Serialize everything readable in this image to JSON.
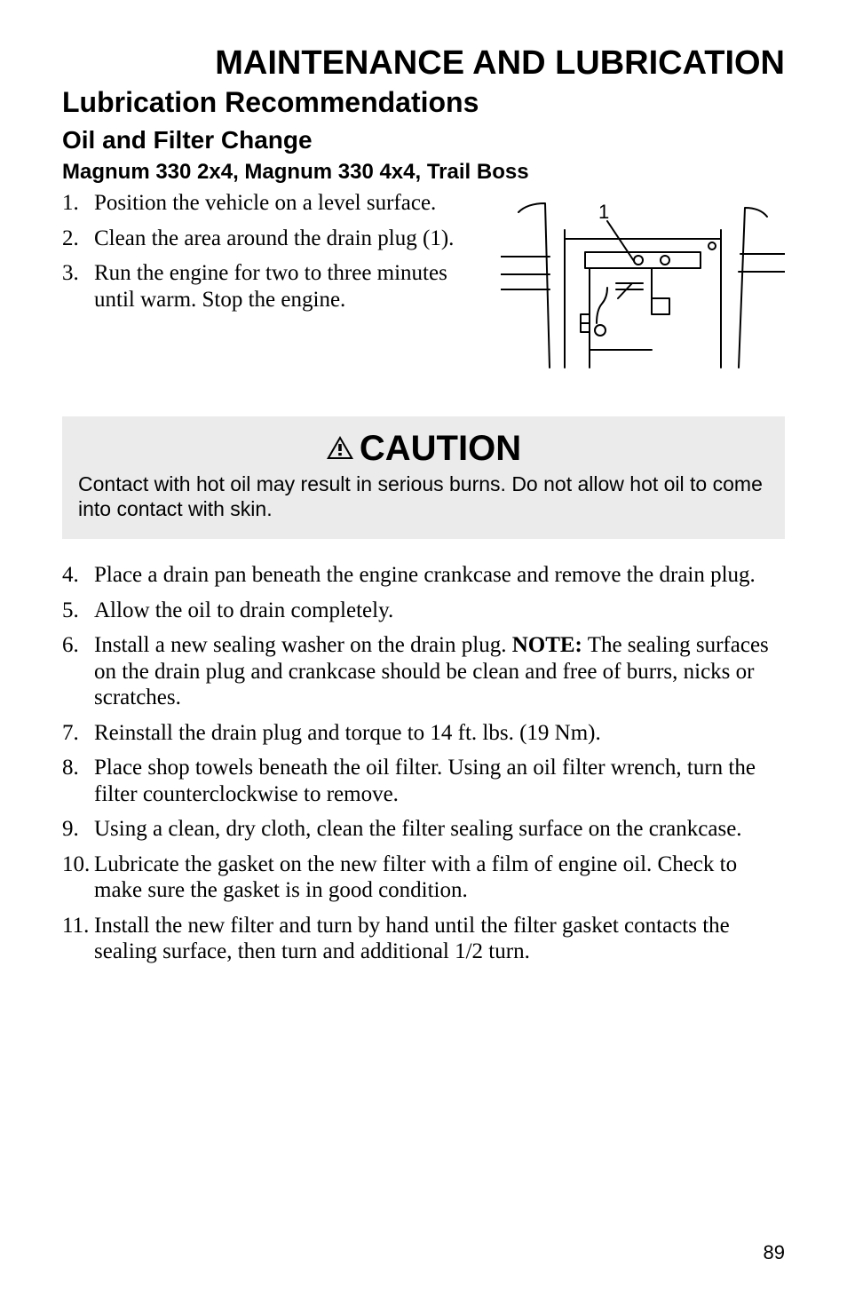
{
  "chapter_title": "MAINTENANCE AND LUBRICATION",
  "section_title": "Lubrication Recommendations",
  "sub_title": "Oil and Filter Change",
  "model_title": "Magnum 330 2x4, Magnum 330 4x4, Trail Boss",
  "steps_top": [
    {
      "n": "1.",
      "t": "Position the vehicle on a level surface."
    },
    {
      "n": "2.",
      "t": "Clean the area around the drain plug (1)."
    },
    {
      "n": "3.",
      "t": "Run the engine for two to three minutes until warm.  Stop the engine."
    }
  ],
  "figure": {
    "callout": "1",
    "stroke": "#000000",
    "stroke_width": 2,
    "callout_font_family": "Arial, Helvetica, sans-serif",
    "callout_fontsize": 22
  },
  "caution": {
    "heading": "CAUTION",
    "text": "Contact with hot oil may result in serious burns.  Do not allow hot oil to come into contact with skin.",
    "background": "#ebebeb",
    "heading_fontsize": 40,
    "text_fontsize": 23
  },
  "note_label": "NOTE:",
  "steps_bottom": [
    {
      "n": "4.",
      "t": "Place a drain pan beneath the engine crankcase and remove the drain plug."
    },
    {
      "n": "5.",
      "t": "Allow the oil to drain completely."
    },
    {
      "n": "6.",
      "pre": "Install a new sealing washer on the drain plug.  ",
      "note": true,
      "post": "  The sealing surfaces on the drain plug and crankcase should be clean and free of burrs, nicks or scratches."
    },
    {
      "n": "7.",
      "t": "Reinstall the drain plug and torque to 14 ft. lbs. (19 Nm)."
    },
    {
      "n": "8.",
      "t": "Place shop towels beneath the oil filter.  Using an oil filter wrench, turn the filter counterclockwise to remove."
    },
    {
      "n": "9.",
      "t": "Using a clean, dry cloth, clean the filter sealing surface on the crankcase."
    },
    {
      "n": "10.",
      "t": "Lubricate the gasket on the new filter with a film of engine oil.  Check to make sure the gasket is in good condition."
    },
    {
      "n": "11.",
      "t": "Install the new filter and turn by hand until the filter gasket contacts the sealing surface, then turn and additional 1/2 turn."
    }
  ],
  "page_number": "89",
  "typography": {
    "chapter_fontsize": 38,
    "section_fontsize": 32,
    "sub_fontsize": 28,
    "model_fontsize": 24,
    "body_fontsize": 25,
    "page_number_fontsize": 22,
    "body_font": "Times New Roman, Times, serif",
    "heading_font": "Arial, Helvetica, sans-serif",
    "text_color": "#000000"
  }
}
